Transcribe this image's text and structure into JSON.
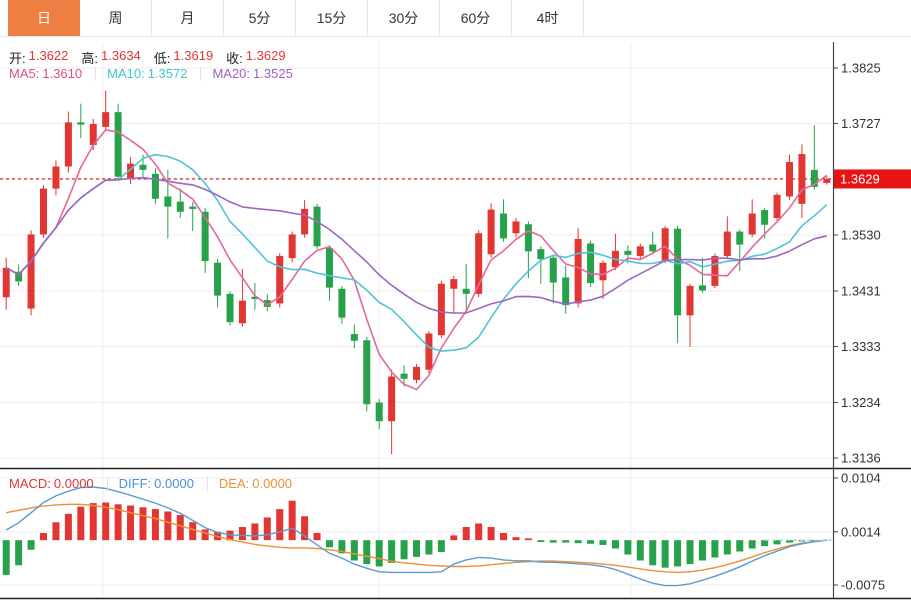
{
  "tabs": {
    "items": [
      {
        "label": "日",
        "active": true
      },
      {
        "label": "周",
        "active": false
      },
      {
        "label": "月",
        "active": false
      },
      {
        "label": "5分",
        "active": false
      },
      {
        "label": "15分",
        "active": false
      },
      {
        "label": "30分",
        "active": false
      },
      {
        "label": "60分",
        "active": false
      },
      {
        "label": "4时",
        "active": false
      }
    ]
  },
  "ohlc": {
    "items": [
      {
        "label": "开:",
        "value": "1.3622"
      },
      {
        "label": "高:",
        "value": "1.3634"
      },
      {
        "label": "低:",
        "value": "1.3619"
      },
      {
        "label": "收:",
        "value": "1.3629"
      }
    ]
  },
  "ma_legend": {
    "items": [
      {
        "label": "MA5:",
        "value": "1.3610",
        "color": "#e0507e"
      },
      {
        "label": "MA10:",
        "value": "1.3572",
        "color": "#3fc6cf"
      },
      {
        "label": "MA20:",
        "value": "1.3525",
        "color": "#a05fc5"
      }
    ]
  },
  "macd_legend": {
    "items": [
      {
        "label": "MACD:",
        "value": "0.0000",
        "color": "#e23632"
      },
      {
        "label": "DIFF:",
        "value": "0.0000",
        "color": "#4a90d9"
      },
      {
        "label": "DEA:",
        "value": "0.0000",
        "color": "#ee8f35"
      }
    ]
  },
  "price_axis": {
    "tick_labels": [
      "1.3825",
      "1.3727",
      "1.3629",
      "1.3530",
      "1.3431",
      "1.3333",
      "1.3234",
      "1.3136"
    ],
    "current_label": "1.3629"
  },
  "macd_axis": {
    "tick_labels": [
      "0.0104",
      "0.0014",
      "-0.0075"
    ]
  },
  "colors": {
    "up": "#e23632",
    "down": "#27a24b",
    "ma5": "#e8679a",
    "ma10": "#4fc4d8",
    "ma20": "#9d66c3",
    "diff": "#5b9bd5",
    "dea": "#ee8f35",
    "grid": "#ececec",
    "axis": "#444444",
    "panel_border": "#222222",
    "current_price_line": "#e60000",
    "current_price_box": "#e61414",
    "macd_zero_dash": "#9fd4e8",
    "active_tab": "#ee7e41"
  },
  "chart_data": {
    "type": "candlestick+macd",
    "title": "",
    "price_ticks": [
      1.3825,
      1.3727,
      1.3629,
      1.353,
      1.3431,
      1.3333,
      1.3234,
      1.3136
    ],
    "current_price": 1.3629,
    "ma_windows": [
      5,
      10,
      20
    ],
    "candles_ohlc": [
      [
        1.342,
        1.349,
        1.3398,
        1.3472
      ],
      [
        1.3465,
        1.3478,
        1.344,
        1.3448
      ],
      [
        1.34,
        1.3538,
        1.3388,
        1.3531
      ],
      [
        1.3531,
        1.3618,
        1.3525,
        1.3612
      ],
      [
        1.3612,
        1.3662,
        1.36,
        1.3651
      ],
      [
        1.3651,
        1.3748,
        1.364,
        1.3729
      ],
      [
        1.3729,
        1.3762,
        1.3701,
        1.3725
      ],
      [
        1.3689,
        1.3735,
        1.368,
        1.3726
      ],
      [
        1.3721,
        1.3785,
        1.3715,
        1.3747
      ],
      [
        1.3747,
        1.3762,
        1.3628,
        1.3633
      ],
      [
        1.3629,
        1.3668,
        1.362,
        1.3656
      ],
      [
        1.3654,
        1.3672,
        1.3628,
        1.3645
      ],
      [
        1.3638,
        1.3648,
        1.3585,
        1.3594
      ],
      [
        1.3598,
        1.3645,
        1.3524,
        1.358
      ],
      [
        1.3589,
        1.3612,
        1.356,
        1.3571
      ],
      [
        1.358,
        1.3588,
        1.3537,
        1.3576
      ],
      [
        1.3571,
        1.3578,
        1.3463,
        1.3484
      ],
      [
        1.3481,
        1.3488,
        1.3402,
        1.3423
      ],
      [
        1.3426,
        1.343,
        1.337,
        1.3376
      ],
      [
        1.3374,
        1.347,
        1.3368,
        1.3414
      ],
      [
        1.3421,
        1.3445,
        1.3398,
        1.3417
      ],
      [
        1.3415,
        1.3425,
        1.3395,
        1.3403
      ],
      [
        1.3409,
        1.3498,
        1.3402,
        1.3493
      ],
      [
        1.3489,
        1.3536,
        1.3482,
        1.3531
      ],
      [
        1.3531,
        1.3592,
        1.3525,
        1.3576
      ],
      [
        1.358,
        1.3585,
        1.3505,
        1.351
      ],
      [
        1.3507,
        1.3512,
        1.3414,
        1.3437
      ],
      [
        1.3435,
        1.344,
        1.3373,
        1.3384
      ],
      [
        1.3355,
        1.3372,
        1.333,
        1.3343
      ],
      [
        1.3344,
        1.335,
        1.3218,
        1.3231
      ],
      [
        1.3234,
        1.324,
        1.3187,
        1.3201
      ],
      [
        1.3201,
        1.3292,
        1.3143,
        1.328
      ],
      [
        1.3285,
        1.33,
        1.3262,
        1.3276
      ],
      [
        1.3274,
        1.3302,
        1.3268,
        1.3297
      ],
      [
        1.3292,
        1.336,
        1.3286,
        1.3356
      ],
      [
        1.3353,
        1.3449,
        1.3348,
        1.3444
      ],
      [
        1.3435,
        1.3458,
        1.3391,
        1.3452
      ],
      [
        1.3435,
        1.3479,
        1.3391,
        1.3426
      ],
      [
        1.3426,
        1.3538,
        1.342,
        1.3533
      ],
      [
        1.3496,
        1.3586,
        1.349,
        1.3575
      ],
      [
        1.3568,
        1.3593,
        1.3518,
        1.3524
      ],
      [
        1.3533,
        1.356,
        1.3526,
        1.3554
      ],
      [
        1.3549,
        1.3554,
        1.3454,
        1.3501
      ],
      [
        1.3505,
        1.351,
        1.3444,
        1.3487
      ],
      [
        1.349,
        1.3494,
        1.3409,
        1.3446
      ],
      [
        1.3455,
        1.3476,
        1.3391,
        1.3406
      ],
      [
        1.3409,
        1.3542,
        1.3402,
        1.3523
      ],
      [
        1.3515,
        1.352,
        1.3438,
        1.3445
      ],
      [
        1.345,
        1.3485,
        1.3417,
        1.3481
      ],
      [
        1.3473,
        1.3532,
        1.3468,
        1.3502
      ],
      [
        1.3502,
        1.3512,
        1.348,
        1.3495
      ],
      [
        1.3493,
        1.3515,
        1.3488,
        1.351
      ],
      [
        1.3513,
        1.3536,
        1.3496,
        1.3501
      ],
      [
        1.3484,
        1.3546,
        1.348,
        1.3542
      ],
      [
        1.3541,
        1.3546,
        1.3339,
        1.3388
      ],
      [
        1.3388,
        1.3444,
        1.3332,
        1.344
      ],
      [
        1.3441,
        1.349,
        1.3428,
        1.3432
      ],
      [
        1.344,
        1.3497,
        1.3436,
        1.3493
      ],
      [
        1.3493,
        1.3563,
        1.3488,
        1.3536
      ],
      [
        1.3536,
        1.354,
        1.3466,
        1.3513
      ],
      [
        1.3531,
        1.3593,
        1.3526,
        1.3568
      ],
      [
        1.3574,
        1.3578,
        1.3524,
        1.3548
      ],
      [
        1.356,
        1.3605,
        1.3555,
        1.3601
      ],
      [
        1.3598,
        1.3672,
        1.3592,
        1.3659
      ],
      [
        1.3585,
        1.369,
        1.356,
        1.3673
      ],
      [
        1.3645,
        1.3724,
        1.361,
        1.3615
      ],
      [
        1.3622,
        1.3634,
        1.3619,
        1.3629
      ]
    ],
    "macd": {
      "ticks": [
        0.0104,
        0.0014,
        -0.0075
      ],
      "hist": [
        -0.0058,
        -0.0042,
        -0.0016,
        0.0012,
        0.003,
        0.0044,
        0.0056,
        0.0062,
        0.0063,
        0.006,
        0.0058,
        0.0055,
        0.0052,
        0.0048,
        0.0042,
        0.003,
        0.0018,
        0.0014,
        0.0016,
        0.0022,
        0.0028,
        0.0038,
        0.0052,
        0.0066,
        0.004,
        0.0012,
        -0.0012,
        -0.0022,
        -0.0034,
        -0.004,
        -0.0044,
        -0.0038,
        -0.0032,
        -0.0028,
        -0.0024,
        -0.002,
        0.0008,
        0.0022,
        0.0028,
        0.0022,
        0.0012,
        0.0005,
        0.0003,
        -0.0003,
        -0.0004,
        -0.0004,
        -0.0005,
        -0.0006,
        -0.0008,
        -0.0014,
        -0.0024,
        -0.0034,
        -0.0042,
        -0.0046,
        -0.0044,
        -0.004,
        -0.0034,
        -0.0029,
        -0.0024,
        -0.0019,
        -0.0014,
        -0.001,
        -0.0007,
        -0.0004,
        -0.0002,
        -0.0001,
        0.0
      ],
      "dea": [
        0.0046,
        0.005,
        0.0054,
        0.0057,
        0.0059,
        0.006,
        0.006,
        0.0058,
        0.0055,
        0.0051,
        0.0046,
        0.0041,
        0.0036,
        0.003,
        0.0024,
        0.0018,
        0.0012,
        0.0006,
        0.0001,
        -0.0003,
        -0.0007,
        -0.001,
        -0.0012,
        -0.0013,
        -0.0013,
        -0.0014,
        -0.0016,
        -0.0019,
        -0.0023,
        -0.0027,
        -0.0031,
        -0.0035,
        -0.0038,
        -0.004,
        -0.0042,
        -0.0043,
        -0.0044,
        -0.0044,
        -0.0043,
        -0.0041,
        -0.0039,
        -0.0037,
        -0.0036,
        -0.0035,
        -0.0035,
        -0.0036,
        -0.0037,
        -0.0038,
        -0.004,
        -0.0042,
        -0.0045,
        -0.0048,
        -0.0051,
        -0.0053,
        -0.0054,
        -0.0053,
        -0.005,
        -0.0046,
        -0.0041,
        -0.0035,
        -0.0028,
        -0.0021,
        -0.0015,
        -0.0009,
        -0.0005,
        -0.0002,
        0.0
      ]
    }
  }
}
